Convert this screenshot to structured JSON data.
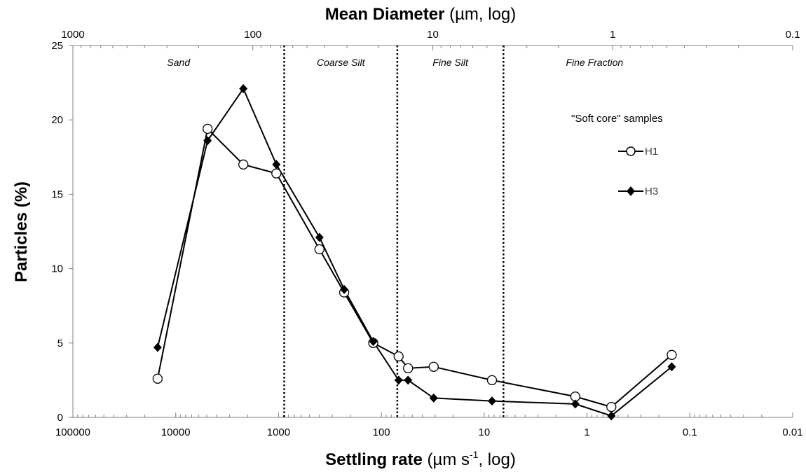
{
  "chart_data": {
    "type": "line",
    "title": "",
    "top_axis": {
      "title_bold": "Mean Diameter",
      "title_rest": " (µm, log)",
      "scale": "log",
      "tick_labels": [
        "1000",
        "100",
        "10",
        "1",
        "0.1"
      ],
      "ticks": [
        1000,
        100,
        10,
        1,
        0.1
      ],
      "range": [
        1000,
        0.1
      ]
    },
    "xaxis": {
      "title_bold": "Settling rate",
      "title_pre": " (µm s",
      "title_sup": "-1",
      "title_post": ", log)",
      "scale": "log",
      "reversed": true,
      "tick_labels": [
        "100000",
        "10000",
        "1000",
        "100",
        "10",
        "1",
        "0.1",
        "0.01"
      ],
      "ticks": [
        100000,
        10000,
        1000,
        100,
        10,
        1,
        0.1,
        0.01
      ],
      "range": [
        100000,
        0.01
      ]
    },
    "yaxis": {
      "title": "Particles (%)",
      "tick_labels": [
        "0",
        "5",
        "10",
        "15",
        "20",
        "25"
      ],
      "ticks": [
        0,
        5,
        10,
        15,
        20,
        25
      ],
      "range": [
        0,
        25
      ]
    },
    "regions": [
      {
        "label": "Sand"
      },
      {
        "label": "Coarse Silt"
      },
      {
        "label": "Fine Silt"
      },
      {
        "label": "Fine Fraction"
      }
    ],
    "region_boundaries_settling_rate": [
      880,
      70,
      6.5
    ],
    "legend_title": "\"Soft core\" samples",
    "series": [
      {
        "name": "H1",
        "marker": "circle-open",
        "x": [
          15000,
          4900,
          2200,
          1050,
          400,
          230,
          120,
          68,
          55,
          31,
          8.4,
          1.3,
          0.58,
          0.15
        ],
        "y": [
          2.6,
          19.4,
          17.0,
          16.4,
          11.3,
          8.4,
          5.0,
          4.1,
          3.3,
          3.4,
          2.5,
          1.4,
          0.7,
          4.2
        ]
      },
      {
        "name": "H3",
        "marker": "diamond-filled",
        "x": [
          15000,
          4900,
          2200,
          1050,
          400,
          230,
          120,
          68,
          55,
          31,
          8.4,
          1.3,
          0.58,
          0.15
        ],
        "y": [
          4.7,
          18.6,
          22.1,
          17.0,
          12.1,
          8.6,
          5.1,
          2.5,
          2.5,
          1.3,
          1.1,
          0.9,
          0.1,
          3.4
        ]
      }
    ],
    "grid": false,
    "legend_position": "right"
  }
}
